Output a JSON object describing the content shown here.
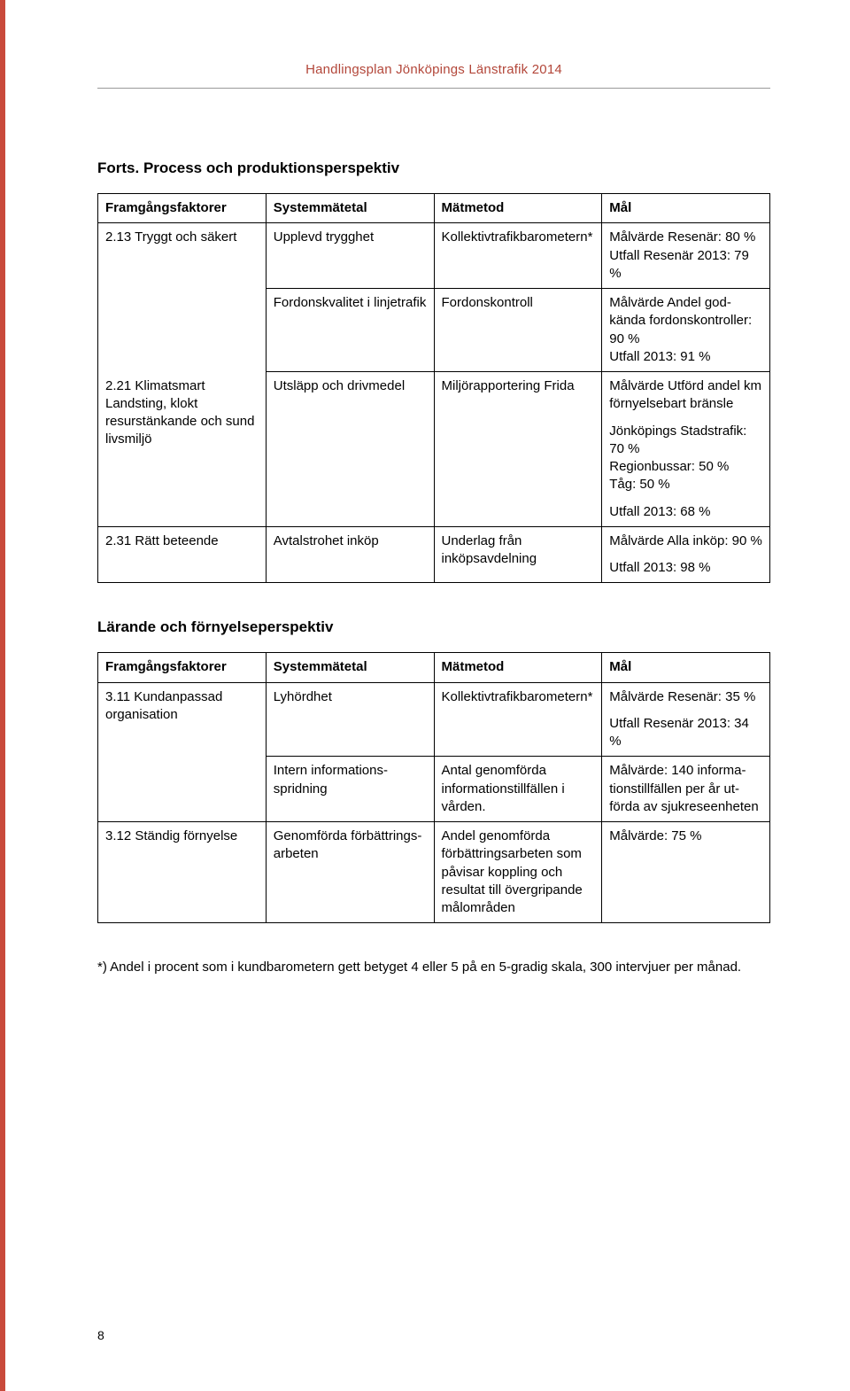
{
  "header": {
    "title": "Handlingsplan Jönköpings Länstrafik 2014"
  },
  "section1": {
    "title": "Forts. Process och produktionsperspektiv",
    "columns": [
      "Framgångsfaktorer",
      "Systemmätetal",
      "Mätmetod",
      "Mål"
    ],
    "rows": [
      {
        "c1": "2.13 Tryggt och säkert",
        "c2": "Upplevd trygghet",
        "c3": "Kollektivtrafik­barometern*",
        "c4": "Målvärde Resenär: 80 %\nUtfall Resenär 2013: 79 %"
      },
      {
        "c1": "",
        "c2": "Fordonskvalitet i linjetrafik",
        "c3": "Fordonskontroll",
        "c4": "Målvärde Andel god­kända fordonskontroller: 90 %\nUtfall 2013: 91 %"
      },
      {
        "c1": "2.21 Klimatsmart Landsting, klokt resurstänkande och sund livsmiljö",
        "c2": "Utsläpp och drivmedel",
        "c3": "Miljörapportering Frida",
        "c4a": "Målvärde Utförd andel km förnyelsebart bränsle",
        "c4b": "Jönköpings Stadstrafik: 70 %\nRegionbussar: 50 %\nTåg: 50 %",
        "c4c": "Utfall 2013: 68 %"
      },
      {
        "c1": "2.31 Rätt beteende",
        "c2": "Avtalstrohet inköp",
        "c3": "Underlag från inköpsavdelning",
        "c4a": "Målvärde Alla inköp: 90 %",
        "c4b": "Utfall 2013: 98 %"
      }
    ]
  },
  "section2": {
    "title": "Lärande och förnyelseperspektiv",
    "columns": [
      "Framgångsfaktorer",
      "Systemmätetal",
      "Mätmetod",
      "Mål"
    ],
    "rows": [
      {
        "c1": "3.11 Kundanpassad organisation",
        "c2": "Lyhördhet",
        "c3": "Kollektivtrafik­barometern*",
        "c4a": "Målvärde Resenär: 35 %",
        "c4b": "Utfall Resenär 2013: 34 %"
      },
      {
        "c1": "",
        "c2": "Intern informations­spridning",
        "c3": "Antal genomförda informationstillfällen i vården.",
        "c4": "Målvärde: 140 informa­tionstillfällen per år ut­förda av sjukreseenheten"
      },
      {
        "c1": "3.12 Ständig förnyelse",
        "c2": "Genomförda förbättrings­arbeten",
        "c3": "Andel genomförda förbättringsarbeten som påvisar koppling och resultat till övergripande målområden",
        "c4": "Målvärde: 75 %"
      }
    ]
  },
  "footnote": "*) Andel i procent som i kundbarometern gett betyget 4 eller 5 på en 5-gradig skala, 300 intervjuer per månad.",
  "pageNumber": "8",
  "style": {
    "edge_color": "#c94a3b",
    "header_color": "#b3473a",
    "rule_color": "#999999",
    "text_color": "#000000",
    "font_family": "Arial, Helvetica, sans-serif",
    "header_fontsize": 15,
    "section_fontsize": 17,
    "table_fontsize": 15,
    "border_width": 1
  }
}
